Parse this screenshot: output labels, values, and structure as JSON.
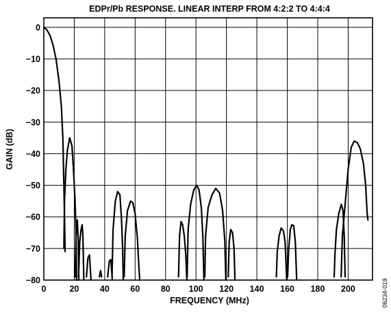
{
  "chart_data": {
    "type": "line",
    "title": "EDPr/Pb RESPONSE. LINEAR INTERP FROM 4:2:2 TO 4:4:4",
    "xlabel": "FREQUENCY (MHz)",
    "ylabel": "GAIN (dB)",
    "figure_code": "06234-019",
    "xlim": [
      0,
      216
    ],
    "ylim": [
      -80,
      3
    ],
    "x_ticks": [
      0,
      20,
      40,
      60,
      80,
      100,
      120,
      140,
      160,
      180,
      200
    ],
    "y_ticks": [
      0,
      -10,
      -20,
      -30,
      -40,
      -50,
      -60,
      -70,
      -80
    ],
    "x_tick_labels": [
      "0",
      "20",
      "40",
      "60",
      "80",
      "100",
      "120",
      "140",
      "160",
      "180",
      "200"
    ],
    "y_tick_labels": [
      "0",
      "−10",
      "−20",
      "−30",
      "−40",
      "−50",
      "−60",
      "−70",
      "−80"
    ],
    "grid": true,
    "series": [
      {
        "segments": [
          [
            [
              0,
              0
            ],
            [
              2,
              -0.8
            ],
            [
              4,
              -2.5
            ],
            [
              6,
              -5.5
            ],
            [
              8,
              -10
            ],
            [
              10,
              -17
            ],
            [
              11.5,
              -25
            ],
            [
              12.5,
              -35
            ],
            [
              13.2,
              -50
            ],
            [
              13.7,
              -62
            ],
            [
              14,
              -71
            ]
          ],
          [
            [
              13.2,
              -70
            ],
            [
              13.6,
              -55
            ],
            [
              14.5,
              -45
            ],
            [
              15.5,
              -39
            ],
            [
              17,
              -35
            ],
            [
              18.5,
              -37.5
            ],
            [
              19.5,
              -45
            ],
            [
              20.5,
              -55
            ],
            [
              21,
              -62
            ],
            [
              21.5,
              -80
            ]
          ],
          [
            [
              20.5,
              -79
            ],
            [
              21.2,
              -66
            ],
            [
              22,
              -61
            ],
            [
              22.6,
              -67
            ],
            [
              23,
              -80
            ]
          ],
          [
            [
              22.8,
              -79
            ],
            [
              23.6,
              -68
            ],
            [
              24.5,
              -64
            ],
            [
              25.2,
              -62.5
            ],
            [
              25.7,
              -66
            ],
            [
              26.3,
              -80
            ]
          ],
          [
            [
              28,
              -79
            ],
            [
              29,
              -73
            ],
            [
              30,
              -72
            ],
            [
              31,
              -80
            ]
          ],
          [
            [
              36.5,
              -79
            ],
            [
              37.3,
              -77
            ],
            [
              38,
              -79
            ]
          ],
          [
            [
              42,
              -79
            ],
            [
              43,
              -74
            ],
            [
              44,
              -73.5
            ],
            [
              44.6,
              -77
            ],
            [
              45,
              -80
            ]
          ],
          [
            [
              44.8,
              -79
            ],
            [
              45.5,
              -64
            ],
            [
              47,
              -55
            ],
            [
              48.5,
              -52
            ],
            [
              50,
              -53
            ],
            [
              51,
              -60
            ],
            [
              51.8,
              -70
            ],
            [
              52.2,
              -80
            ]
          ],
          [
            [
              52.8,
              -79
            ],
            [
              53.5,
              -66
            ],
            [
              55,
              -58
            ],
            [
              57,
              -55
            ],
            [
              58.5,
              -55.5
            ],
            [
              60,
              -59
            ],
            [
              61.5,
              -67
            ],
            [
              62.5,
              -76
            ],
            [
              63,
              -80
            ]
          ],
          [
            [
              88.5,
              -79
            ],
            [
              89.2,
              -66
            ],
            [
              90.2,
              -61.5
            ],
            [
              91.2,
              -62.5
            ],
            [
              92.3,
              -66
            ],
            [
              93.3,
              -72
            ],
            [
              94,
              -80
            ]
          ],
          [
            [
              94.2,
              -79
            ],
            [
              94.8,
              -64
            ],
            [
              96.5,
              -56
            ],
            [
              98.5,
              -51.5
            ],
            [
              100.5,
              -50
            ],
            [
              102,
              -51.5
            ],
            [
              103.5,
              -57
            ],
            [
              104.5,
              -66
            ],
            [
              105.2,
              -80
            ]
          ],
          [
            [
              105.8,
              -79
            ],
            [
              106.3,
              -66
            ],
            [
              108,
              -57
            ],
            [
              110.5,
              -53
            ],
            [
              113,
              -51
            ],
            [
              115.5,
              -52.5
            ],
            [
              117.5,
              -58
            ],
            [
              119,
              -68
            ],
            [
              119.6,
              -80
            ]
          ],
          [
            [
              121.2,
              -79
            ],
            [
              121.8,
              -68
            ],
            [
              122.8,
              -64
            ],
            [
              124,
              -65
            ],
            [
              125,
              -70
            ],
            [
              125.6,
              -80
            ]
          ],
          [
            [
              152.8,
              -79
            ],
            [
              153.4,
              -71
            ],
            [
              154.6,
              -66
            ],
            [
              156,
              -63.5
            ],
            [
              157.5,
              -64.5
            ],
            [
              158.6,
              -68
            ],
            [
              159.6,
              -80
            ]
          ],
          [
            [
              160.2,
              -79
            ],
            [
              160.9,
              -70
            ],
            [
              162,
              -64
            ],
            [
              163,
              -62.5
            ],
            [
              164.2,
              -62.8
            ],
            [
              165.3,
              -68
            ],
            [
              166.2,
              -80
            ]
          ],
          [
            [
              190.8,
              -79
            ],
            [
              191.3,
              -72
            ],
            [
              192.3,
              -64
            ],
            [
              193.8,
              -59
            ],
            [
              195.5,
              -56
            ],
            [
              196.6,
              -58
            ],
            [
              197.4,
              -66
            ],
            [
              198,
              -79
            ]
          ],
          [
            [
              195.4,
              -79
            ],
            [
              196.2,
              -66
            ],
            [
              198,
              -56
            ],
            [
              200,
              -45
            ],
            [
              202,
              -38
            ],
            [
              204,
              -36
            ],
            [
              206,
              -36.5
            ],
            [
              208,
              -38.5
            ],
            [
              210,
              -43
            ],
            [
              211.5,
              -50
            ],
            [
              212.5,
              -59
            ],
            [
              213,
              -61
            ]
          ]
        ]
      }
    ]
  }
}
